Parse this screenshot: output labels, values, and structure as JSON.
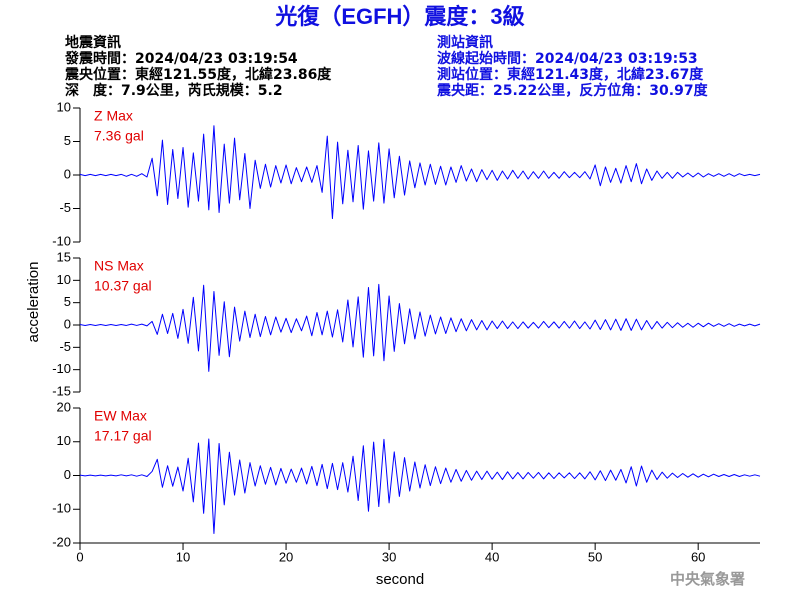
{
  "title": "光復（EGFH）震度：3級",
  "event_info": [
    "地震資訊",
    "發震時間：2024/04/23 03:19:54",
    "震央位置：東經121.55度，北緯23.86度",
    "深　度：7.9公里，芮氏規模：5.2"
  ],
  "station_info": [
    "測站資訊",
    "波線起始時間：2024/04/23 03:19:53",
    "測站位置：東經121.43度，北緯23.67度",
    "震央距：25.22公里，反方位角：30.97度"
  ],
  "ylabel": "acceleration",
  "xlabel": "second",
  "watermark": "中央氣象署",
  "chart_data": [
    {
      "type": "line",
      "annotation": [
        "Z Max",
        "7.36 gal"
      ],
      "xlim": [
        0,
        66
      ],
      "ylim": [
        -10,
        10
      ],
      "yticks": [
        -10,
        -5,
        0,
        5,
        10
      ],
      "color": "#0000ff",
      "x": [
        0,
        0.5,
        1,
        1.5,
        2,
        2.5,
        3,
        3.5,
        4,
        4.5,
        5,
        5.5,
        6,
        6.5,
        7,
        7.5,
        8,
        8.5,
        9,
        9.5,
        10,
        10.5,
        11,
        11.5,
        12,
        12.5,
        13,
        13.5,
        14,
        14.5,
        15,
        15.5,
        16,
        16.5,
        17,
        17.5,
        18,
        18.5,
        19,
        19.5,
        20,
        20.5,
        21,
        21.5,
        22,
        22.5,
        23,
        23.5,
        24,
        24.5,
        25,
        25.5,
        26,
        26.5,
        27,
        27.5,
        28,
        28.5,
        29,
        29.5,
        30,
        30.5,
        31,
        31.5,
        32,
        32.5,
        33,
        33.5,
        34,
        34.5,
        35,
        35.5,
        36,
        36.5,
        37,
        37.5,
        38,
        38.5,
        39,
        39.5,
        40,
        40.5,
        41,
        41.5,
        42,
        42.5,
        43,
        43.5,
        44,
        44.5,
        45,
        45.5,
        46,
        46.5,
        47,
        47.5,
        48,
        48.5,
        49,
        49.5,
        50,
        50.5,
        51,
        51.5,
        52,
        52.5,
        53,
        53.5,
        54,
        54.5,
        55,
        55.5,
        56,
        56.5,
        57,
        57.5,
        58,
        58.5,
        59,
        59.5,
        60,
        60.5,
        61,
        61.5,
        62,
        62.5,
        63,
        63.5,
        64,
        64.5,
        65,
        65.5,
        66
      ],
      "values": [
        0.1,
        -0.1,
        0.1,
        -0.1,
        0.1,
        -0.1,
        0.1,
        -0.1,
        0.1,
        -0.2,
        0.1,
        -0.2,
        0.2,
        -0.3,
        2.5,
        -3.1,
        5.2,
        -4.4,
        3.8,
        -3.5,
        4.1,
        -4.8,
        3.3,
        -3.9,
        6.1,
        -5.2,
        7.36,
        -5.6,
        4.6,
        -4.2,
        5.5,
        -3.7,
        3.2,
        -5.0,
        2.2,
        -2.0,
        1.6,
        -1.8,
        1.4,
        -1.2,
        1.5,
        -1.3,
        1.1,
        -1.0,
        1.2,
        -1.1,
        1.4,
        -2.6,
        5.8,
        -6.5,
        4.9,
        -4.3,
        3.7,
        -4.0,
        4.4,
        -5.1,
        3.6,
        -3.9,
        4.8,
        -4.2,
        3.9,
        -3.4,
        2.8,
        -3.0,
        2.1,
        -1.9,
        1.8,
        -1.5,
        1.6,
        -1.4,
        1.3,
        -1.5,
        1.2,
        -1.1,
        1.4,
        -0.9,
        0.9,
        -1.0,
        0.8,
        -0.7,
        0.7,
        -0.8,
        0.6,
        -0.6,
        0.7,
        -0.5,
        0.6,
        -0.6,
        0.5,
        -0.5,
        0.6,
        -0.5,
        0.4,
        -0.5,
        0.5,
        -0.4,
        0.4,
        -0.4,
        0.5,
        -0.6,
        1.5,
        -1.6,
        1.2,
        -1.1,
        1.0,
        -1.2,
        1.4,
        -1.0,
        1.7,
        -1.3,
        0.9,
        -0.8,
        0.6,
        -0.5,
        0.4,
        -0.5,
        0.4,
        -0.3,
        0.3,
        -0.3,
        0.3,
        -0.3,
        0.2,
        -0.2,
        0.2,
        -0.2,
        0.2,
        -0.2,
        0.2,
        -0.1,
        0.1,
        -0.1,
        0.1
      ]
    },
    {
      "type": "line",
      "annotation": [
        "NS Max",
        "10.37 gal"
      ],
      "xlim": [
        0,
        66
      ],
      "ylim": [
        -15,
        15
      ],
      "yticks": [
        -15,
        -10,
        -5,
        0,
        5,
        10,
        15
      ],
      "color": "#0000ff",
      "x": [
        0,
        0.5,
        1,
        1.5,
        2,
        2.5,
        3,
        3.5,
        4,
        4.5,
        5,
        5.5,
        6,
        6.5,
        7,
        7.5,
        8,
        8.5,
        9,
        9.5,
        10,
        10.5,
        11,
        11.5,
        12,
        12.5,
        13,
        13.5,
        14,
        14.5,
        15,
        15.5,
        16,
        16.5,
        17,
        17.5,
        18,
        18.5,
        19,
        19.5,
        20,
        20.5,
        21,
        21.5,
        22,
        22.5,
        23,
        23.5,
        24,
        24.5,
        25,
        25.5,
        26,
        26.5,
        27,
        27.5,
        28,
        28.5,
        29,
        29.5,
        30,
        30.5,
        31,
        31.5,
        32,
        32.5,
        33,
        33.5,
        34,
        34.5,
        35,
        35.5,
        36,
        36.5,
        37,
        37.5,
        38,
        38.5,
        39,
        39.5,
        40,
        40.5,
        41,
        41.5,
        42,
        42.5,
        43,
        43.5,
        44,
        44.5,
        45,
        45.5,
        46,
        46.5,
        47,
        47.5,
        48,
        48.5,
        49,
        49.5,
        50,
        50.5,
        51,
        51.5,
        52,
        52.5,
        53,
        53.5,
        54,
        54.5,
        55,
        55.5,
        56,
        56.5,
        57,
        57.5,
        58,
        58.5,
        59,
        59.5,
        60,
        60.5,
        61,
        61.5,
        62,
        62.5,
        63,
        63.5,
        64,
        64.5,
        65,
        65.5,
        66
      ],
      "values": [
        0.1,
        -0.1,
        0.1,
        -0.1,
        0.1,
        -0.1,
        0.1,
        -0.1,
        0.1,
        -0.1,
        0.2,
        -0.1,
        0.2,
        -0.2,
        0.8,
        -2.1,
        2.4,
        -1.9,
        2.6,
        -3.0,
        3.5,
        -4.1,
        6.2,
        -5.8,
        8.9,
        -10.37,
        7.5,
        -6.8,
        5.2,
        -7.1,
        4.0,
        -3.6,
        3.1,
        -2.8,
        2.4,
        -2.6,
        1.9,
        -2.2,
        1.8,
        -1.6,
        1.5,
        -1.7,
        1.4,
        -1.3,
        2.0,
        -2.4,
        2.8,
        -2.2,
        3.1,
        -2.7,
        3.4,
        -3.8,
        5.6,
        -4.9,
        6.3,
        -7.2,
        8.4,
        -6.9,
        9.1,
        -8.0,
        6.5,
        -5.9,
        4.8,
        -4.2,
        3.6,
        -3.1,
        2.9,
        -2.5,
        2.2,
        -2.0,
        1.8,
        -1.9,
        1.6,
        -1.5,
        1.4,
        -1.3,
        1.2,
        -1.1,
        1.0,
        -1.1,
        0.9,
        -0.8,
        0.9,
        -0.8,
        0.7,
        -0.8,
        0.7,
        -0.7,
        0.6,
        -0.7,
        0.8,
        -0.6,
        0.7,
        -0.7,
        0.8,
        -0.7,
        0.9,
        -0.8,
        0.7,
        -0.9,
        1.1,
        -1.0,
        1.2,
        -1.1,
        1.3,
        -1.2,
        1.4,
        -1.2,
        1.3,
        -1.1,
        1.0,
        -0.9,
        0.8,
        -0.7,
        0.6,
        -0.6,
        0.5,
        -0.5,
        0.4,
        -0.5,
        0.4,
        -0.4,
        0.4,
        -0.3,
        0.3,
        -0.3,
        0.3,
        -0.3,
        0.2,
        -0.2,
        0.2,
        -0.2,
        0.2
      ]
    },
    {
      "type": "line",
      "annotation": [
        "EW Max",
        "17.17 gal"
      ],
      "xlim": [
        0,
        66
      ],
      "ylim": [
        -20,
        20
      ],
      "yticks": [
        -20,
        -10,
        0,
        10,
        20
      ],
      "xticks": [
        0,
        10,
        20,
        30,
        40,
        50,
        60
      ],
      "color": "#0000ff",
      "x": [
        0,
        0.5,
        1,
        1.5,
        2,
        2.5,
        3,
        3.5,
        4,
        4.5,
        5,
        5.5,
        6,
        6.5,
        7,
        7.5,
        8,
        8.5,
        9,
        9.5,
        10,
        10.5,
        11,
        11.5,
        12,
        12.5,
        13,
        13.5,
        14,
        14.5,
        15,
        15.5,
        16,
        16.5,
        17,
        17.5,
        18,
        18.5,
        19,
        19.5,
        20,
        20.5,
        21,
        21.5,
        22,
        22.5,
        23,
        23.5,
        24,
        24.5,
        25,
        25.5,
        26,
        26.5,
        27,
        27.5,
        28,
        28.5,
        29,
        29.5,
        30,
        30.5,
        31,
        31.5,
        32,
        32.5,
        33,
        33.5,
        34,
        34.5,
        35,
        35.5,
        36,
        36.5,
        37,
        37.5,
        38,
        38.5,
        39,
        39.5,
        40,
        40.5,
        41,
        41.5,
        42,
        42.5,
        43,
        43.5,
        44,
        44.5,
        45,
        45.5,
        46,
        46.5,
        47,
        47.5,
        48,
        48.5,
        49,
        49.5,
        50,
        50.5,
        51,
        51.5,
        52,
        52.5,
        53,
        53.5,
        54,
        54.5,
        55,
        55.5,
        56,
        56.5,
        57,
        57.5,
        58,
        58.5,
        59,
        59.5,
        60,
        60.5,
        61,
        61.5,
        62,
        62.5,
        63,
        63.5,
        64,
        64.5,
        65,
        65.5,
        66
      ],
      "values": [
        0.1,
        -0.1,
        0.1,
        -0.1,
        0.1,
        -0.1,
        0.1,
        -0.1,
        0.2,
        -0.1,
        0.2,
        -0.2,
        0.2,
        -0.3,
        1.2,
        4.8,
        -3.5,
        2.9,
        -3.2,
        2.5,
        -4.6,
        5.1,
        -7.8,
        9.6,
        -11.2,
        10.8,
        -17.17,
        9.5,
        -8.7,
        6.9,
        -5.8,
        4.6,
        -5.2,
        3.8,
        -3.1,
        2.9,
        -2.6,
        2.4,
        -2.8,
        2.1,
        -2.3,
        1.9,
        -2.0,
        2.2,
        -2.5,
        2.7,
        -3.0,
        3.3,
        -3.9,
        3.6,
        -4.2,
        3.8,
        -4.9,
        5.7,
        -7.4,
        8.8,
        -10.6,
        9.9,
        -9.2,
        10.7,
        -8.1,
        7.0,
        -6.2,
        5.3,
        -4.6,
        4.0,
        -3.7,
        3.2,
        -3.0,
        2.6,
        -2.4,
        2.2,
        -2.0,
        1.8,
        -1.7,
        1.5,
        -1.4,
        1.3,
        -1.2,
        1.3,
        -1.1,
        1.0,
        -1.2,
        1.1,
        -1.0,
        0.9,
        -1.0,
        0.9,
        -0.8,
        0.9,
        -1.0,
        0.8,
        -0.9,
        0.8,
        -0.7,
        0.8,
        -0.9,
        0.8,
        -1.0,
        1.1,
        -1.3,
        1.4,
        -1.5,
        1.6,
        -1.4,
        1.8,
        -2.2,
        2.6,
        -3.1,
        2.8,
        -2.0,
        1.6,
        -1.2,
        1.0,
        -0.8,
        0.7,
        -0.6,
        0.6,
        -0.5,
        0.5,
        -0.5,
        0.4,
        -0.4,
        0.4,
        -0.3,
        0.3,
        -0.3,
        0.3,
        -0.3,
        0.2,
        -0.2,
        0.2,
        -0.2
      ]
    }
  ]
}
